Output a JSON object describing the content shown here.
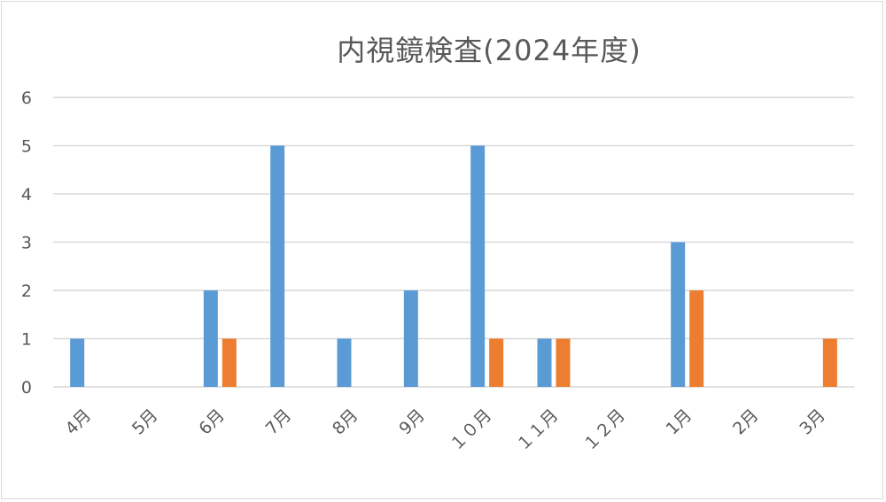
{
  "chart_data": {
    "type": "bar",
    "title": "内視鏡検査(2024年度)",
    "xlabel": "",
    "ylabel": "",
    "categories": [
      "4月",
      "5月",
      "6月",
      "7月",
      "8月",
      "9月",
      "１０月",
      "１１月",
      "１２月",
      "1月",
      "2月",
      "3月"
    ],
    "series": [
      {
        "values": [
          1,
          0,
          2,
          5,
          1,
          2,
          5,
          1,
          0,
          3,
          0,
          0
        ]
      },
      {
        "values": [
          0,
          0,
          1,
          0,
          0,
          0,
          1,
          1,
          0,
          2,
          0,
          1
        ]
      }
    ],
    "ylim": [
      0,
      6
    ],
    "yticks": [
      "0",
      "1",
      "2",
      "3",
      "4",
      "5",
      "6"
    ],
    "grid": true,
    "legend": "none",
    "colors": [
      "#5b9bd5",
      "#ed7d31"
    ],
    "grid_color": "#d9d9d9",
    "text_color": "#595959"
  }
}
